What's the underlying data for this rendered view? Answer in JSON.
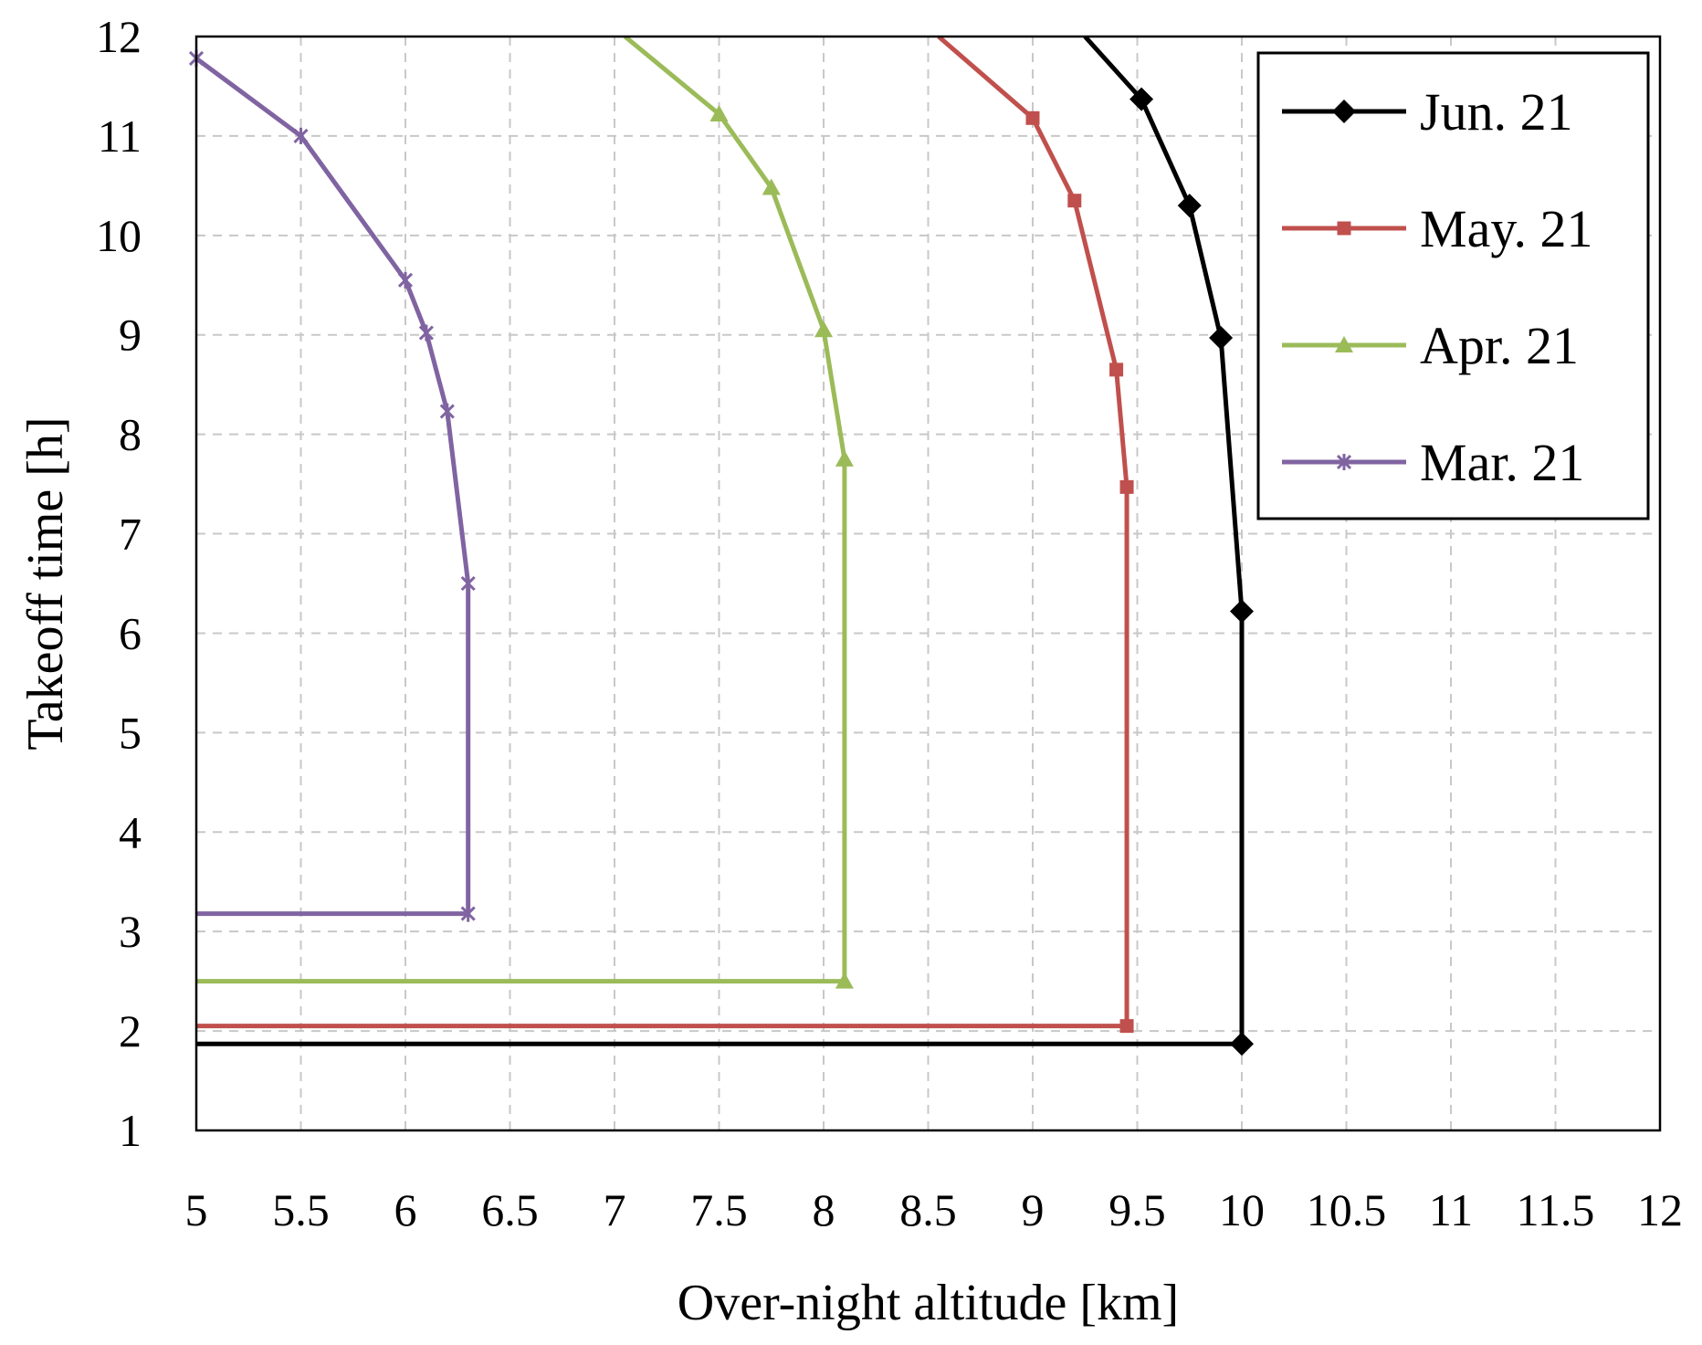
{
  "chart_data": {
    "type": "line",
    "title": "",
    "xlabel": "Over-night altitude [km]",
    "ylabel": "Takeoff time [h]",
    "xlim": [
      5,
      12
    ],
    "ylim": [
      1,
      12
    ],
    "xticks": [
      5,
      5.5,
      6,
      6.5,
      7,
      7.5,
      8,
      8.5,
      9,
      9.5,
      10,
      10.5,
      11,
      11.5,
      12
    ],
    "xtick_labels": [
      "5",
      "5.5",
      "6",
      "6.5",
      "7",
      "7.5",
      "8",
      "8.5",
      "9",
      "9.5",
      "10",
      "10.5",
      "11",
      "11.5",
      "12"
    ],
    "yticks": [
      1,
      2,
      3,
      4,
      5,
      6,
      7,
      8,
      9,
      10,
      11,
      12
    ],
    "ytick_labels": [
      "1",
      "2",
      "3",
      "4",
      "5",
      "6",
      "7",
      "8",
      "9",
      "10",
      "11",
      "12"
    ],
    "grid": true,
    "legend_position": "top-right",
    "series": [
      {
        "name": "Jun. 21",
        "color": "#000000",
        "marker": "diamond",
        "points": [
          [
            5,
            1.87
          ],
          [
            10,
            1.87
          ],
          [
            10,
            6.22
          ],
          [
            9.9,
            8.97
          ],
          [
            9.75,
            10.3
          ],
          [
            9.52,
            11.37
          ],
          [
            9.25,
            12
          ]
        ],
        "marked": [
          false,
          true,
          true,
          true,
          true,
          true,
          false
        ]
      },
      {
        "name": "May. 21",
        "color": "#c0504d",
        "marker": "square",
        "points": [
          [
            5,
            2.05
          ],
          [
            9.45,
            2.05
          ],
          [
            9.45,
            7.47
          ],
          [
            9.4,
            8.65
          ],
          [
            9.2,
            10.35
          ],
          [
            9.0,
            11.18
          ],
          [
            8.55,
            12
          ]
        ],
        "marked": [
          false,
          true,
          true,
          true,
          true,
          true,
          false
        ]
      },
      {
        "name": "Apr. 21",
        "color": "#9bbb59",
        "marker": "triangle",
        "points": [
          [
            5,
            2.5
          ],
          [
            8.1,
            2.5
          ],
          [
            8.1,
            7.75
          ],
          [
            8.0,
            9.05
          ],
          [
            7.75,
            10.48
          ],
          [
            7.5,
            11.22
          ],
          [
            7.05,
            12
          ]
        ],
        "marked": [
          false,
          true,
          true,
          true,
          true,
          true,
          false
        ]
      },
      {
        "name": "Mar. 21",
        "color": "#8064a2",
        "marker": "star",
        "points": [
          [
            5,
            3.18
          ],
          [
            6.3,
            3.18
          ],
          [
            6.3,
            6.5
          ],
          [
            6.2,
            8.23
          ],
          [
            6.1,
            9.02
          ],
          [
            6.0,
            9.55
          ],
          [
            5.5,
            11.0
          ],
          [
            5.0,
            11.78
          ]
        ],
        "marked": [
          false,
          true,
          true,
          true,
          true,
          true,
          true,
          true
        ]
      }
    ]
  }
}
